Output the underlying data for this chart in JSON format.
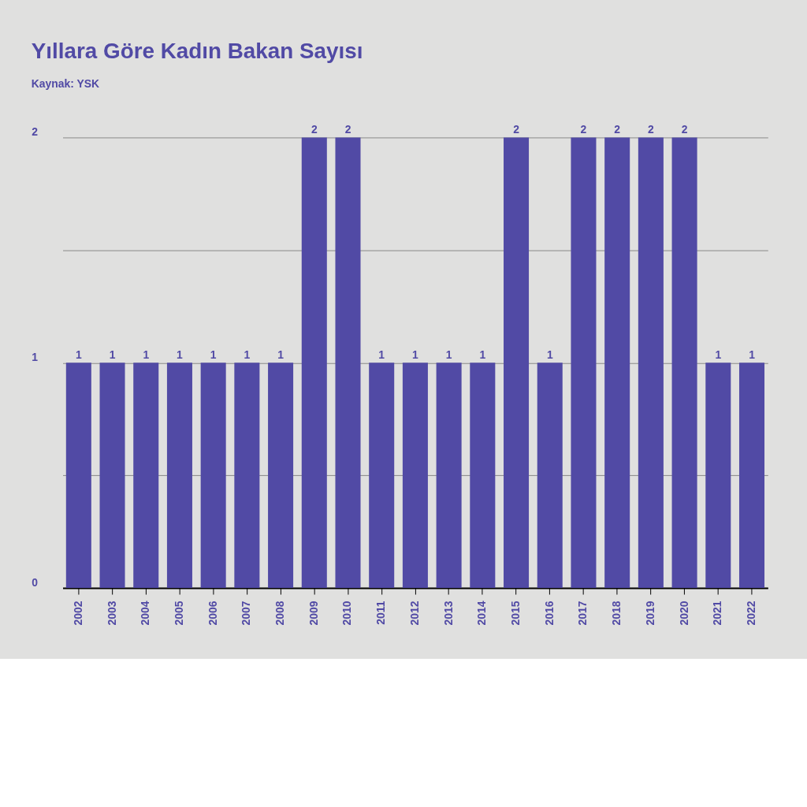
{
  "chart_data": {
    "type": "bar",
    "title": "Yıllara Göre Kadın Bakan Sayısı",
    "subtitle": "Kaynak: YSK",
    "categories": [
      "2002",
      "2003",
      "2004",
      "2005",
      "2006",
      "2007",
      "2008",
      "2009",
      "2010",
      "2011",
      "2012",
      "2013",
      "2014",
      "2015",
      "2016",
      "2017",
      "2018",
      "2019",
      "2020",
      "2021",
      "2022"
    ],
    "values": [
      1,
      1,
      1,
      1,
      1,
      1,
      1,
      2,
      2,
      1,
      1,
      1,
      1,
      2,
      1,
      2,
      2,
      2,
      2,
      1,
      1
    ],
    "color": "#514aa5",
    "ylim": [
      0,
      2
    ],
    "yticks": [
      0,
      {
        "value": 0.5,
        "label": null
      },
      1,
      {
        "value": 1.5,
        "label": null
      },
      2
    ],
    "grid": "y",
    "data_labels": true
  }
}
